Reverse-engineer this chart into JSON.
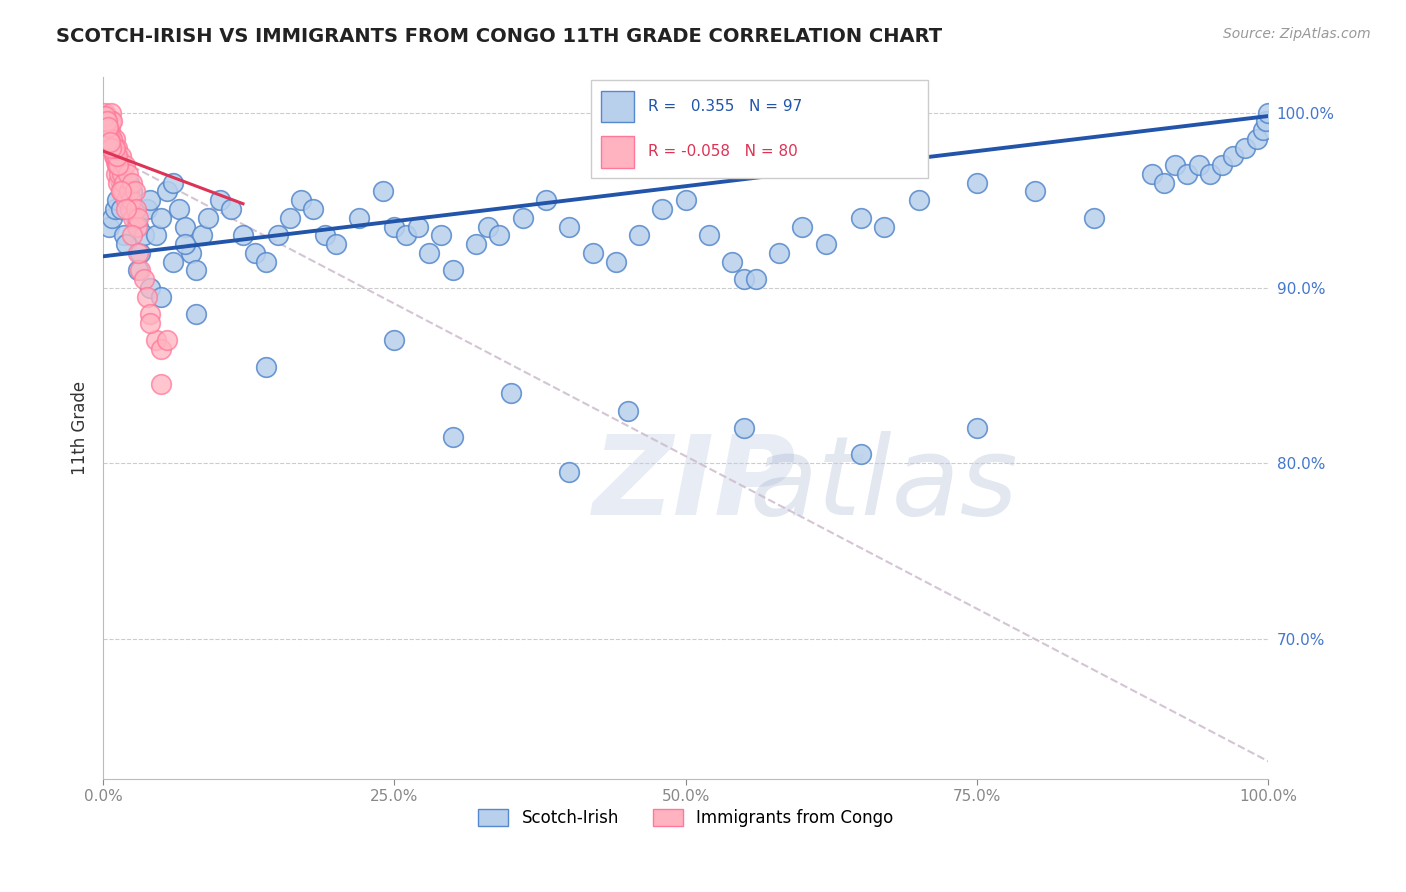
{
  "title": "SCOTCH-IRISH VS IMMIGRANTS FROM CONGO 11TH GRADE CORRELATION CHART",
  "source": "Source: ZipAtlas.com",
  "ylabel": "11th Grade",
  "blue_r_text": "R =   0.355",
  "blue_n_text": "N = 97",
  "pink_r_text": "R = -0.058",
  "pink_n_text": "N = 80",
  "blue_color_face": "#B8D0EC",
  "blue_color_edge": "#5588CC",
  "pink_color_face": "#FFB3C0",
  "pink_color_edge": "#FF7799",
  "blue_line_color": "#2255AA",
  "pink_line_color": "#DD3355",
  "dashed_line_color": "#CCBBCC",
  "blue_scatter_x": [
    0.5,
    0.8,
    1.0,
    1.2,
    1.5,
    1.5,
    1.8,
    2.0,
    2.2,
    2.5,
    2.8,
    3.0,
    3.2,
    3.5,
    3.8,
    4.0,
    4.5,
    5.0,
    5.5,
    6.0,
    6.5,
    7.0,
    7.5,
    8.0,
    8.5,
    9.0,
    10.0,
    11.0,
    12.0,
    13.0,
    14.0,
    15.0,
    16.0,
    17.0,
    18.0,
    19.0,
    20.0,
    22.0,
    24.0,
    25.0,
    26.0,
    27.0,
    28.0,
    29.0,
    30.0,
    32.0,
    33.0,
    34.0,
    36.0,
    38.0,
    40.0,
    42.0,
    44.0,
    46.0,
    48.0,
    50.0,
    52.0,
    54.0,
    55.0,
    56.0,
    58.0,
    60.0,
    62.0,
    65.0,
    67.0,
    70.0,
    75.0,
    80.0,
    85.0,
    90.0,
    91.0,
    92.0,
    93.0,
    94.0,
    95.0,
    96.0,
    97.0,
    98.0,
    99.0,
    99.5,
    99.8,
    100.0,
    3.0,
    4.0,
    5.0,
    6.0,
    7.0,
    8.0,
    14.0,
    25.0,
    35.0,
    45.0,
    55.0,
    65.0,
    75.0,
    30.0,
    40.0
  ],
  "blue_scatter_y": [
    93.5,
    94.0,
    94.5,
    95.0,
    94.5,
    96.0,
    93.0,
    92.5,
    96.0,
    95.5,
    94.0,
    93.5,
    92.0,
    93.0,
    94.5,
    95.0,
    93.0,
    94.0,
    95.5,
    96.0,
    94.5,
    93.5,
    92.0,
    91.0,
    93.0,
    94.0,
    95.0,
    94.5,
    93.0,
    92.0,
    91.5,
    93.0,
    94.0,
    95.0,
    94.5,
    93.0,
    92.5,
    94.0,
    95.5,
    93.5,
    93.0,
    93.5,
    92.0,
    93.0,
    91.0,
    92.5,
    93.5,
    93.0,
    94.0,
    95.0,
    93.5,
    92.0,
    91.5,
    93.0,
    94.5,
    95.0,
    93.0,
    91.5,
    90.5,
    90.5,
    92.0,
    93.5,
    92.5,
    94.0,
    93.5,
    95.0,
    96.0,
    95.5,
    94.0,
    96.5,
    96.0,
    97.0,
    96.5,
    97.0,
    96.5,
    97.0,
    97.5,
    98.0,
    98.5,
    99.0,
    99.5,
    100.0,
    91.0,
    90.0,
    89.5,
    91.5,
    92.5,
    88.5,
    85.5,
    87.0,
    84.0,
    83.0,
    82.0,
    80.5,
    82.0,
    81.5,
    79.5
  ],
  "pink_scatter_x": [
    0.2,
    0.3,
    0.3,
    0.4,
    0.4,
    0.5,
    0.5,
    0.5,
    0.6,
    0.6,
    0.7,
    0.7,
    0.7,
    0.8,
    0.8,
    0.9,
    0.9,
    1.0,
    1.0,
    1.0,
    1.1,
    1.1,
    1.2,
    1.2,
    1.3,
    1.3,
    1.4,
    1.4,
    1.5,
    1.5,
    1.6,
    1.7,
    1.8,
    1.9,
    2.0,
    2.1,
    2.2,
    2.3,
    2.4,
    2.5,
    2.6,
    2.7,
    2.8,
    2.9,
    3.0,
    3.2,
    3.5,
    3.8,
    4.0,
    4.5,
    5.0,
    5.5,
    0.25,
    0.35,
    0.45,
    0.55,
    0.65,
    0.75,
    0.85,
    1.05,
    1.25,
    0.3,
    0.6,
    0.9,
    1.2,
    0.4,
    0.8,
    1.0,
    0.5,
    0.7,
    1.5,
    2.0,
    2.5,
    3.0,
    4.0,
    5.0,
    0.2,
    0.3,
    0.4,
    0.55
  ],
  "pink_scatter_y": [
    100.0,
    99.5,
    99.8,
    99.0,
    99.2,
    98.5,
    98.8,
    99.0,
    99.0,
    98.5,
    100.0,
    99.5,
    98.0,
    99.5,
    98.0,
    98.0,
    97.5,
    97.5,
    98.5,
    97.8,
    96.5,
    97.2,
    97.0,
    98.0,
    96.0,
    97.5,
    96.5,
    97.0,
    95.5,
    97.5,
    96.5,
    95.5,
    96.0,
    97.0,
    95.0,
    96.5,
    95.5,
    94.5,
    95.0,
    96.0,
    94.0,
    95.5,
    94.5,
    93.5,
    94.0,
    91.0,
    90.5,
    89.5,
    88.5,
    87.0,
    86.5,
    87.0,
    99.5,
    99.0,
    99.0,
    98.5,
    98.5,
    98.0,
    98.0,
    97.5,
    97.0,
    99.0,
    98.5,
    98.0,
    97.5,
    99.0,
    98.5,
    98.0,
    98.5,
    98.0,
    95.5,
    94.5,
    93.0,
    92.0,
    88.0,
    84.5,
    99.8,
    99.5,
    99.2,
    98.3
  ],
  "blue_trend_x0": 0.0,
  "blue_trend_x1": 100.0,
  "blue_trend_y0": 91.8,
  "blue_trend_y1": 99.8,
  "pink_solid_x0": 0.0,
  "pink_solid_x1": 12.0,
  "pink_solid_y0": 97.8,
  "pink_solid_y1": 94.8,
  "pink_dash_x0": 0.0,
  "pink_dash_x1": 100.0,
  "pink_dash_y0": 97.8,
  "pink_dash_y1": 63.0,
  "xlim": [
    0.0,
    100.0
  ],
  "ylim": [
    62.0,
    102.0
  ],
  "right_yticks": [
    70.0,
    80.0,
    90.0,
    100.0
  ],
  "right_ytick_labels": [
    "70.0%",
    "80.0%",
    "90.0%",
    "100.0%"
  ],
  "xtick_positions": [
    0.0,
    25.0,
    50.0,
    75.0,
    100.0
  ],
  "xtick_labels": [
    "0.0%",
    "25.0%",
    "50.0%",
    "75.0%",
    "100.0%"
  ]
}
